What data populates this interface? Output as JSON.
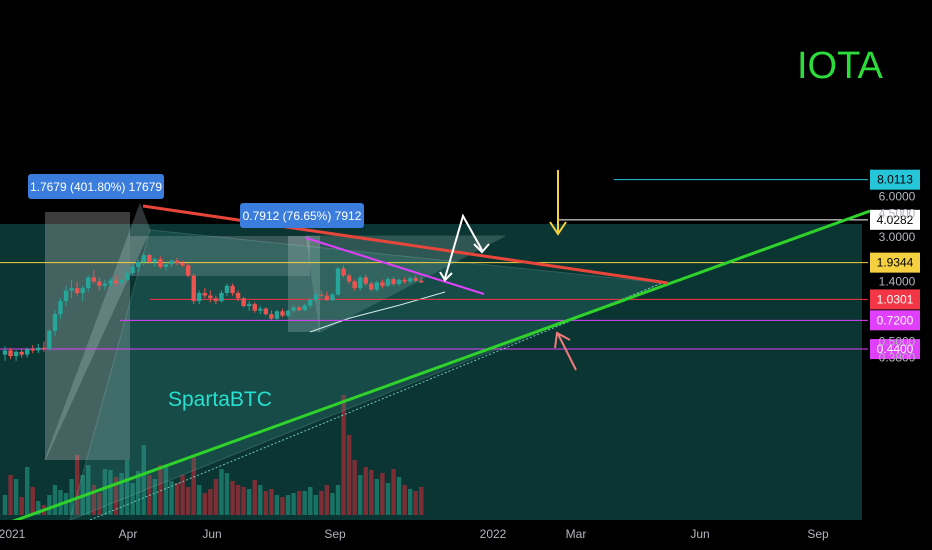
{
  "chart_data": {
    "type": "candlestick",
    "symbol": "IOTA",
    "watermark": "SpartaBTC",
    "x_ticks": [
      "2021",
      "Apr",
      "Jun",
      "Sep",
      "2022",
      "Mar",
      "Jun",
      "Sep"
    ],
    "y_axis_ticks": [
      "6.0000",
      "4.5000",
      "3.0000",
      "1.4000",
      "0.5000",
      "0.3800"
    ],
    "price_levels": [
      {
        "label": "8.0113",
        "value": 8.0113,
        "color": "#26c6da"
      },
      {
        "label": "4.0282",
        "value": 4.0282,
        "color": "#ffffff"
      },
      {
        "label": "1.9344",
        "value": 1.9344,
        "color": "#f5d142"
      },
      {
        "label": "1.0301",
        "value": 1.0301,
        "color": "#f23645"
      },
      {
        "label": "0.7200",
        "value": 0.72,
        "color": "#e040fb"
      },
      {
        "label": "0.4400",
        "value": 0.44,
        "color": "#e040fb"
      }
    ],
    "annotations": [
      {
        "text": "1.7679 (401.80%) 17679"
      },
      {
        "text": "0.7912 (76.65%) 7912"
      }
    ],
    "candles": [
      [
        0.4,
        0.46,
        0.36,
        0.43
      ],
      [
        0.43,
        0.45,
        0.37,
        0.39
      ],
      [
        0.39,
        0.43,
        0.36,
        0.42
      ],
      [
        0.42,
        0.44,
        0.38,
        0.4
      ],
      [
        0.4,
        0.45,
        0.38,
        0.44
      ],
      [
        0.44,
        0.47,
        0.41,
        0.43
      ],
      [
        0.43,
        0.48,
        0.41,
        0.45
      ],
      [
        0.45,
        0.5,
        0.42,
        0.44
      ],
      [
        0.44,
        0.62,
        0.43,
        0.6
      ],
      [
        0.6,
        0.85,
        0.55,
        0.8
      ],
      [
        0.8,
        1.05,
        0.74,
        1.0
      ],
      [
        1.0,
        1.3,
        0.92,
        1.2
      ],
      [
        1.2,
        1.45,
        1.05,
        1.25
      ],
      [
        1.25,
        1.4,
        1.1,
        1.15
      ],
      [
        1.15,
        1.3,
        1.0,
        1.25
      ],
      [
        1.25,
        1.55,
        1.18,
        1.5
      ],
      [
        1.5,
        1.7,
        1.35,
        1.4
      ],
      [
        1.4,
        1.5,
        1.2,
        1.3
      ],
      [
        1.3,
        1.45,
        1.2,
        1.35
      ],
      [
        1.35,
        1.5,
        1.28,
        1.42
      ],
      [
        1.42,
        1.55,
        1.3,
        1.36
      ],
      [
        1.36,
        1.48,
        1.3,
        1.44
      ],
      [
        1.44,
        1.7,
        1.4,
        1.62
      ],
      [
        1.62,
        1.85,
        1.55,
        1.8
      ],
      [
        1.8,
        2.05,
        1.65,
        1.95
      ],
      [
        1.95,
        2.3,
        1.85,
        2.2
      ],
      [
        2.2,
        2.25,
        1.9,
        1.95
      ],
      [
        1.95,
        2.1,
        1.8,
        2.05
      ],
      [
        2.05,
        2.15,
        1.75,
        1.8
      ],
      [
        1.8,
        1.95,
        1.7,
        1.88
      ],
      [
        1.88,
        2.05,
        1.8,
        2.0
      ],
      [
        2.0,
        2.1,
        1.85,
        1.92
      ],
      [
        1.92,
        2.0,
        1.8,
        1.85
      ],
      [
        1.85,
        1.9,
        1.5,
        1.55
      ],
      [
        1.55,
        1.6,
        0.95,
        1.0
      ],
      [
        1.0,
        1.2,
        0.95,
        1.15
      ],
      [
        1.15,
        1.25,
        1.05,
        1.1
      ],
      [
        1.1,
        1.2,
        0.98,
        1.05
      ],
      [
        1.05,
        1.1,
        0.95,
        1.0
      ],
      [
        1.0,
        1.2,
        0.98,
        1.15
      ],
      [
        1.15,
        1.35,
        1.1,
        1.3
      ],
      [
        1.3,
        1.35,
        1.1,
        1.15
      ],
      [
        1.15,
        1.2,
        1.0,
        1.05
      ],
      [
        1.05,
        1.08,
        0.9,
        0.92
      ],
      [
        0.92,
        1.0,
        0.85,
        0.95
      ],
      [
        0.95,
        0.98,
        0.82,
        0.85
      ],
      [
        0.85,
        0.92,
        0.8,
        0.88
      ],
      [
        0.88,
        0.9,
        0.78,
        0.8
      ],
      [
        0.8,
        0.85,
        0.72,
        0.74
      ],
      [
        0.74,
        0.86,
        0.72,
        0.84
      ],
      [
        0.84,
        0.88,
        0.76,
        0.78
      ],
      [
        0.78,
        0.86,
        0.76,
        0.85
      ],
      [
        0.85,
        0.92,
        0.82,
        0.9
      ],
      [
        0.9,
        0.92,
        0.84,
        0.86
      ],
      [
        0.86,
        0.95,
        0.84,
        0.93
      ],
      [
        0.93,
        1.05,
        0.9,
        1.02
      ],
      [
        1.02,
        1.15,
        0.98,
        1.12
      ],
      [
        1.12,
        1.2,
        1.05,
        1.1
      ],
      [
        1.1,
        1.18,
        1.0,
        1.02
      ],
      [
        1.02,
        1.15,
        1.0,
        1.12
      ],
      [
        1.12,
        1.8,
        1.1,
        1.75
      ],
      [
        1.75,
        1.85,
        1.5,
        1.55
      ],
      [
        1.55,
        1.6,
        1.35,
        1.4
      ],
      [
        1.4,
        1.45,
        1.2,
        1.25
      ],
      [
        1.25,
        1.55,
        1.2,
        1.5
      ],
      [
        1.5,
        1.58,
        1.3,
        1.35
      ],
      [
        1.35,
        1.4,
        1.18,
        1.22
      ],
      [
        1.22,
        1.42,
        1.18,
        1.38
      ],
      [
        1.38,
        1.45,
        1.25,
        1.3
      ],
      [
        1.3,
        1.5,
        1.28,
        1.46
      ],
      [
        1.46,
        1.52,
        1.3,
        1.34
      ],
      [
        1.34,
        1.48,
        1.3,
        1.44
      ],
      [
        1.44,
        1.5,
        1.35,
        1.4
      ],
      [
        1.4,
        1.52,
        1.36,
        1.48
      ],
      [
        1.48,
        1.55,
        1.38,
        1.42
      ],
      [
        1.42,
        1.5,
        1.36,
        1.38
      ]
    ],
    "ylim": [
      0.33,
      10.0
    ],
    "scale": "log"
  }
}
